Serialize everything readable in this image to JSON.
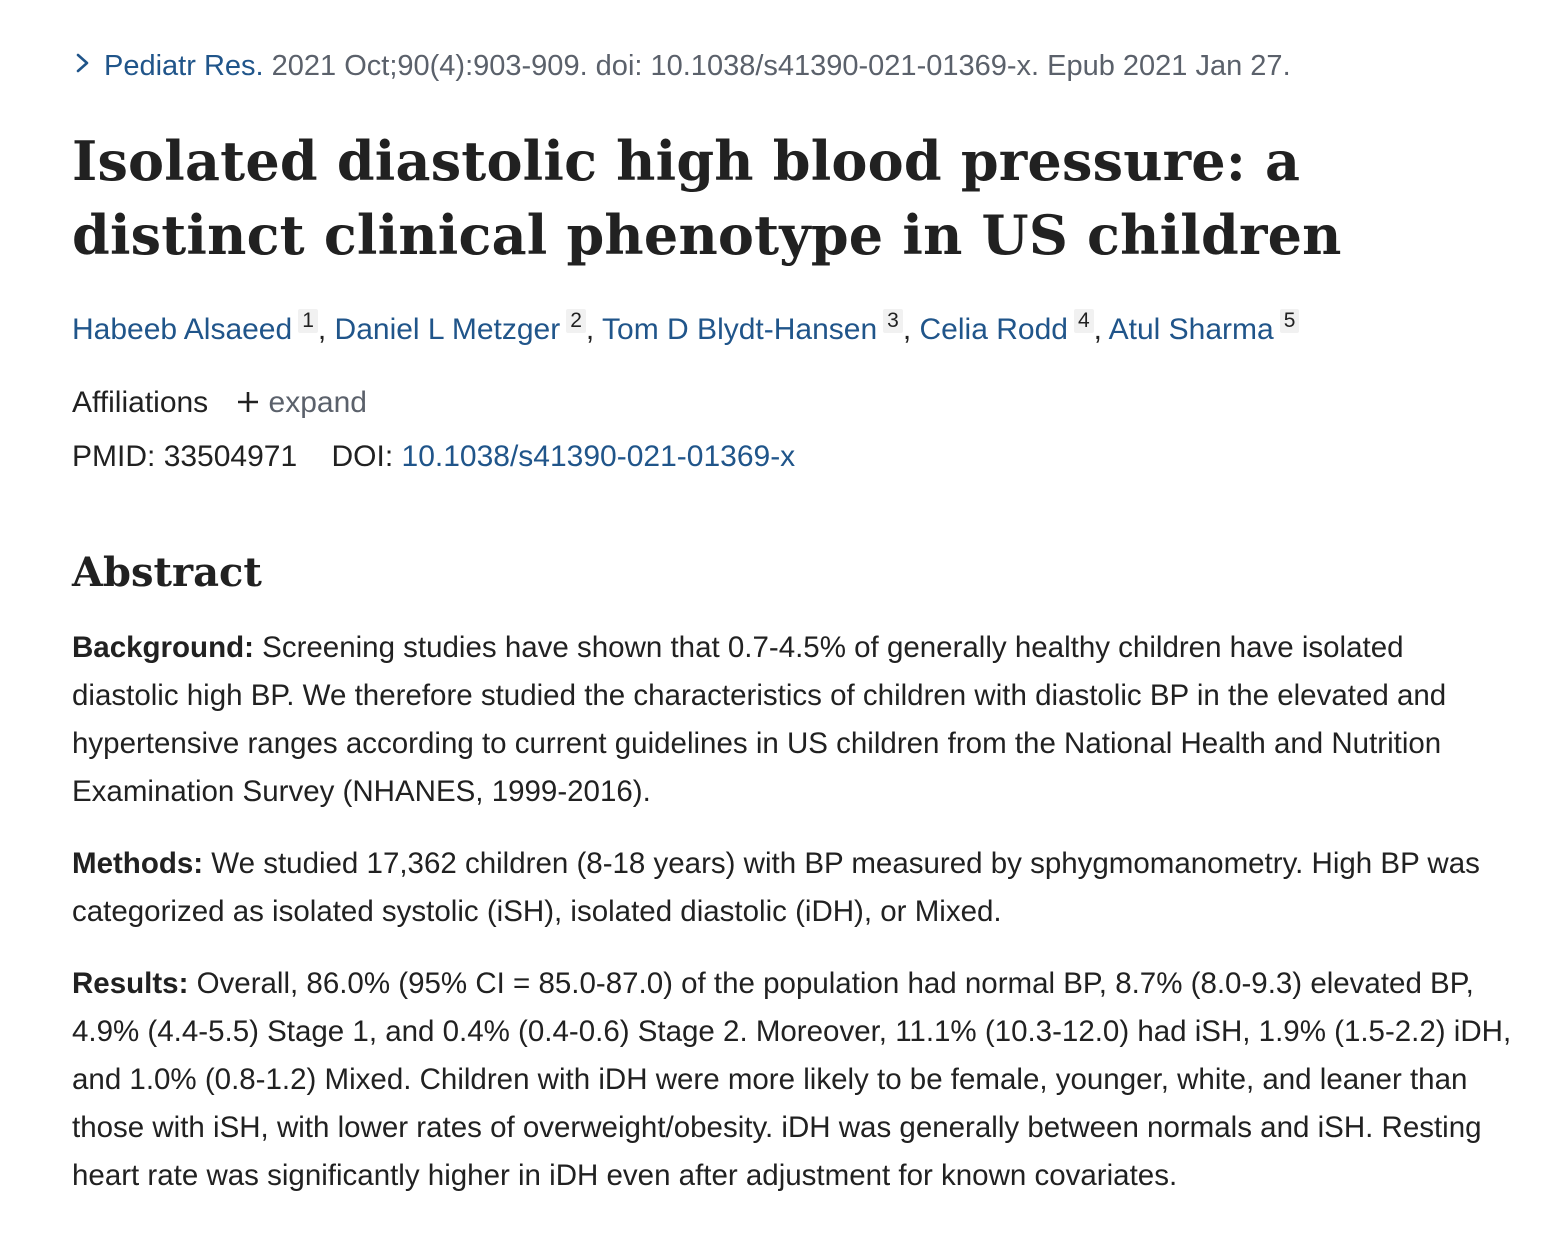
{
  "citation": {
    "journal": "Pediatr Res.",
    "details": "2021 Oct;90(4):903-909. doi: 10.1038/s41390-021-01369-x. Epub 2021 Jan 27."
  },
  "title": "Isolated diastolic high blood pressure: a distinct clinical phenotype in US children",
  "authors": [
    {
      "name": "Habeeb Alsaeed",
      "aff": "1"
    },
    {
      "name": "Daniel L Metzger",
      "aff": "2"
    },
    {
      "name": "Tom D Blydt-Hansen",
      "aff": "3"
    },
    {
      "name": "Celia Rodd",
      "aff": "4"
    },
    {
      "name": "Atul Sharma",
      "aff": "5"
    }
  ],
  "affiliations": {
    "label": "Affiliations",
    "expand_label": "expand"
  },
  "ids": {
    "pmid_label": "PMID:",
    "pmid": "33504971",
    "doi_label": "DOI:",
    "doi": "10.1038/s41390-021-01369-x"
  },
  "abstract": {
    "heading": "Abstract",
    "background_label": "Background:",
    "background_text": "Screening studies have shown that 0.7-4.5% of generally healthy children have isolated diastolic high BP. We therefore studied the characteristics of children with diastolic BP in the elevated and hypertensive ranges according to current guidelines in US children from the National Health and Nutrition Examination Survey (NHANES, 1999-2016).",
    "methods_label": "Methods:",
    "methods_text": "We studied 17,362 children (8-18 years) with BP measured by sphygmomanometry. High BP was categorized as isolated systolic (iSH), isolated diastolic (iDH), or Mixed.",
    "results_label": "Results:",
    "results_text": "Overall, 86.0% (95% CI = 85.0-87.0) of the population had normal BP, 8.7% (8.0-9.3) elevated BP, 4.9% (4.4-5.5) Stage 1, and 0.4% (0.4-0.6) Stage 2. Moreover, 11.1% (10.3-12.0) had iSH, 1.9% (1.5-2.2) iDH, and 1.0% (0.8-1.2) Mixed. Children with iDH were more likely to be female, younger, white, and leaner than those with iSH, with lower rates of overweight/obesity. iDH was generally between normals and iSH. Resting heart rate was significantly higher in iDH even after adjustment for known covariates."
  }
}
